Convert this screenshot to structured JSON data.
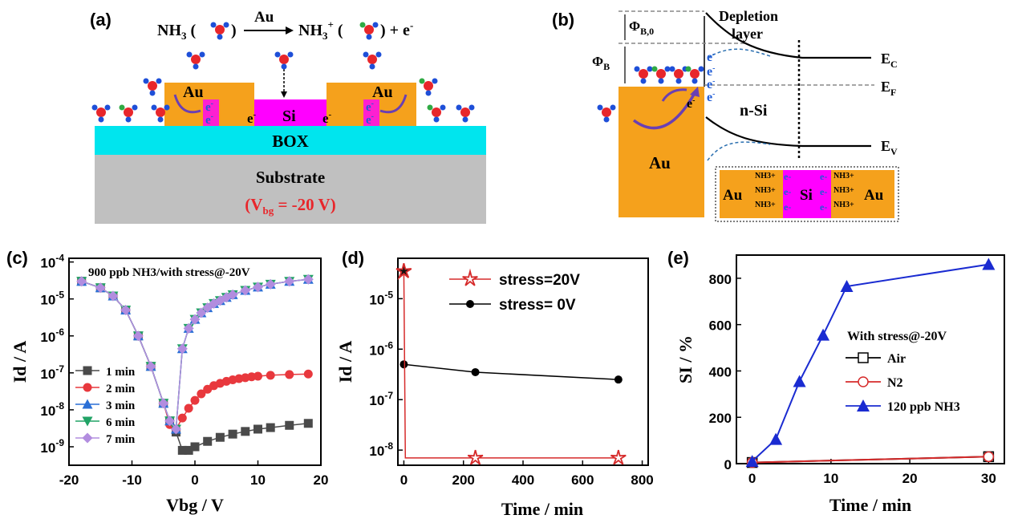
{
  "panel_labels": {
    "a": "(a)",
    "b": "(b)",
    "c": "(c)",
    "d": "(d)",
    "e": "(e)"
  },
  "panel_a": {
    "reaction_left": "NH3 (",
    "reaction_right": ") + e-",
    "reaction_mid": ") ",
    "reaction_product": "NH3+ (",
    "catalyst": "Au",
    "au_left": "Au",
    "au_right": "Au",
    "si": "Si",
    "electron": "e-",
    "box": "BOX",
    "substrate": "Substrate",
    "vbg": "(Vbg = -20 V)",
    "colors": {
      "au": "#f5a11c",
      "si": "#ff00ff",
      "box": "#00e5ee",
      "substrate": "#c0c0c0",
      "electron": "#1e5bd6"
    }
  },
  "panel_b": {
    "phi_b0": "ΦB,0",
    "phi_b": "ΦB",
    "depletion_1": "Depletion",
    "depletion_2": "layer",
    "ec": "EC",
    "ef": "EF",
    "ev": "EV",
    "nsi": "n-Si",
    "au": "Au",
    "electron": "e-",
    "inset_au_left": "Au",
    "inset_si": "Si",
    "inset_au_right": "Au",
    "inset_nh3": "NH3+"
  },
  "chart_data": [
    {
      "type": "line",
      "panel": "(c)",
      "annotation": "900 ppb NH3/with stress@-20V",
      "xlabel": "Vbg / V",
      "ylabel": "Id / A",
      "xlim": [
        -20,
        20
      ],
      "ylim_log10": [
        -9.5,
        -3.9
      ],
      "yscale": "log",
      "xticks": [
        "-20",
        "-10",
        "0",
        "10",
        "20"
      ],
      "yticks": [
        "10-9",
        "10-8",
        "10-7",
        "10-6",
        "10-5",
        "10-4"
      ],
      "legend_position": "bottom-left",
      "series": [
        {
          "name": "1 min",
          "color": "#4a4a4a",
          "marker": "square",
          "x": [
            -18,
            -15,
            -13,
            -11,
            -9,
            -7,
            -5,
            -4,
            -3,
            -2,
            -1,
            0,
            2,
            4,
            6,
            8,
            10,
            12,
            15,
            18
          ],
          "y": [
            3e-05,
            2e-05,
            1.2e-05,
            5e-06,
            1e-06,
            1.5e-07,
            1.5e-08,
            5e-09,
            2.5e-09,
            8e-10,
            8e-10,
            1e-09,
            1.4e-09,
            1.8e-09,
            2.2e-09,
            2.6e-09,
            3e-09,
            3.3e-09,
            3.8e-09,
            4.3e-09
          ]
        },
        {
          "name": "2 min",
          "color": "#e8383d",
          "marker": "circle",
          "x": [
            -18,
            -15,
            -13,
            -11,
            -9,
            -7,
            -5,
            -4,
            -3,
            -2,
            -1,
            0,
            1,
            2,
            3,
            4,
            5,
            6,
            7,
            8,
            9,
            10,
            12,
            15,
            18
          ],
          "y": [
            3e-05,
            2e-05,
            1.2e-05,
            5e-06,
            1e-06,
            1.5e-07,
            1.5e-08,
            4e-09,
            3e-09,
            6e-09,
            1.1e-08,
            1.8e-08,
            2.7e-08,
            3.6e-08,
            4.5e-08,
            5.2e-08,
            5.9e-08,
            6.5e-08,
            7e-08,
            7.4e-08,
            7.8e-08,
            8.1e-08,
            8.6e-08,
            9e-08,
            9.3e-08
          ]
        },
        {
          "name": "3 min",
          "color": "#2a6fd6",
          "marker": "triangle",
          "x": [
            -18,
            -15,
            -13,
            -11,
            -9,
            -7,
            -5,
            -4,
            -3,
            -2,
            -1,
            0,
            1,
            2,
            3,
            4,
            5,
            6,
            8,
            10,
            12,
            15,
            18
          ],
          "y": [
            3e-05,
            2e-05,
            1.2e-05,
            5e-06,
            1e-06,
            1.5e-07,
            1.5e-08,
            5e-09,
            3e-09,
            4.5e-07,
            1.6e-06,
            2.8e-06,
            4.2e-06,
            5.8e-06,
            7.5e-06,
            9e-06,
            1.1e-05,
            1.3e-05,
            1.7e-05,
            2.1e-05,
            2.5e-05,
            3e-05,
            3.4e-05
          ]
        },
        {
          "name": "6 min",
          "color": "#21a366",
          "marker": "triangle-down",
          "x": [
            -18,
            -15,
            -13,
            -11,
            -9,
            -7,
            -5,
            -4,
            -3,
            -2,
            -1,
            0,
            1,
            2,
            3,
            4,
            5,
            6,
            8,
            10,
            12,
            15,
            18
          ],
          "y": [
            3e-05,
            2e-05,
            1.2e-05,
            5e-06,
            1e-06,
            1.5e-07,
            1.5e-08,
            5e-09,
            3e-09,
            4.5e-07,
            1.6e-06,
            2.8e-06,
            4.2e-06,
            5.8e-06,
            7.5e-06,
            9e-06,
            1.1e-05,
            1.3e-05,
            1.7e-05,
            2.1e-05,
            2.5e-05,
            3e-05,
            3.4e-05
          ]
        },
        {
          "name": "7 min",
          "color": "#b28ddf",
          "marker": "diamond",
          "x": [
            -18,
            -15,
            -13,
            -11,
            -9,
            -7,
            -5,
            -4,
            -3,
            -2,
            -1,
            0,
            1,
            2,
            3,
            4,
            5,
            6,
            8,
            10,
            12,
            15,
            18
          ],
          "y": [
            3e-05,
            2e-05,
            1.2e-05,
            5e-06,
            1e-06,
            1.5e-07,
            1.5e-08,
            5e-09,
            3e-09,
            4.5e-07,
            1.6e-06,
            2.8e-06,
            4.2e-06,
            5.8e-06,
            7.5e-06,
            9e-06,
            1.1e-05,
            1.3e-05,
            1.7e-05,
            2.1e-05,
            2.5e-05,
            3e-05,
            3.4e-05
          ]
        }
      ]
    },
    {
      "type": "line",
      "panel": "(d)",
      "xlabel": "Time / min",
      "ylabel": "Id / A",
      "xlim": [
        -20,
        820
      ],
      "ylim_log10": [
        -8.3,
        -4.2
      ],
      "yscale": "log",
      "xticks": [
        "0",
        "200",
        "400",
        "600",
        "800"
      ],
      "yticks": [
        "10-8",
        "10-7",
        "10-6",
        "10-5"
      ],
      "legend_position": "top-right",
      "series": [
        {
          "name": "stress=20V",
          "color": "#d62b2b",
          "marker": "star-open",
          "x": [
            0,
            5,
            240,
            720
          ],
          "y": [
            3.5e-05,
            7e-09,
            7e-09,
            7e-09
          ]
        },
        {
          "name": "stress= 0V",
          "color": "#000000",
          "marker": "circle",
          "x": [
            0,
            240,
            720
          ],
          "y": [
            5e-07,
            3.5e-07,
            2.5e-07
          ]
        }
      ]
    },
    {
      "type": "line",
      "panel": "(e)",
      "xlabel": "Time / min",
      "ylabel": "SI / %",
      "xlim": [
        -2,
        32
      ],
      "ylim": [
        0,
        900
      ],
      "xticks": [
        "0",
        "10",
        "20",
        "30"
      ],
      "yticks": [
        "0",
        "200",
        "400",
        "600",
        "800"
      ],
      "legend_title": "With stress@-20V",
      "legend_position": "center-right",
      "series": [
        {
          "name": "Air",
          "color": "#000000",
          "marker": "square-open",
          "x": [
            0,
            30
          ],
          "y": [
            5,
            30
          ]
        },
        {
          "name": "N2",
          "color": "#d62b2b",
          "marker": "circle-open",
          "x": [
            0,
            30
          ],
          "y": [
            5,
            30
          ]
        },
        {
          "name": "120 ppb NH3",
          "color": "#1a2bd1",
          "marker": "triangle",
          "x": [
            0,
            3,
            6,
            9,
            12,
            30
          ],
          "y": [
            10,
            105,
            355,
            555,
            765,
            860
          ]
        }
      ]
    }
  ]
}
